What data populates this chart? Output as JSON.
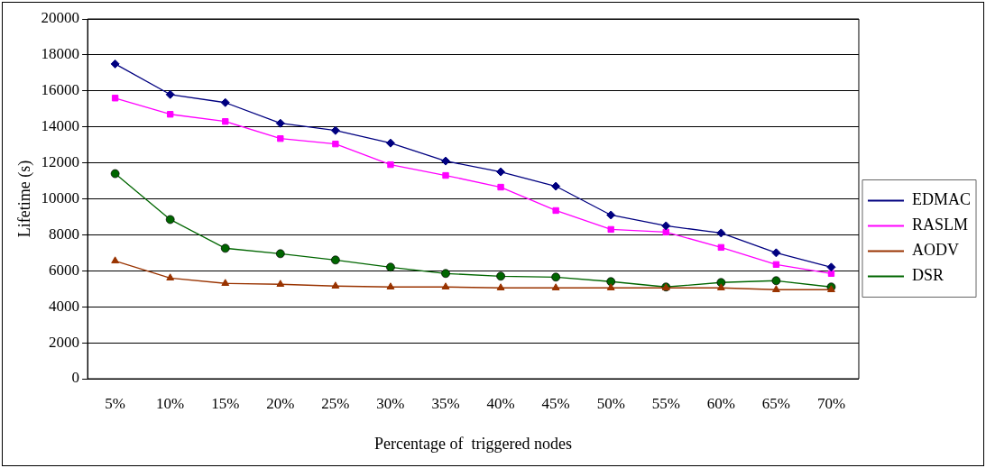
{
  "chart_data": {
    "type": "line",
    "xlabel": "Percentage of  triggered nodes",
    "ylabel": "Lifetime (s)",
    "categories": [
      "5%",
      "10%",
      "15%",
      "20%",
      "25%",
      "30%",
      "35%",
      "40%",
      "45%",
      "50%",
      "55%",
      "60%",
      "65%",
      "70%"
    ],
    "series": [
      {
        "name": "EDMAC",
        "color": "#000080",
        "marker": "diamond",
        "values": [
          17500,
          15800,
          15350,
          14200,
          13800,
          13100,
          12100,
          11500,
          10700,
          9100,
          8500,
          8100,
          7000,
          6200
        ]
      },
      {
        "name": "RASLM",
        "color": "#ff00ff",
        "marker": "square",
        "values": [
          15600,
          14700,
          14300,
          13350,
          13050,
          11900,
          11300,
          10650,
          9350,
          8300,
          8150,
          7300,
          6350,
          5850
        ]
      },
      {
        "name": "AODV",
        "color": "#993300",
        "marker": "triangle",
        "values": [
          6550,
          5600,
          5300,
          5250,
          5150,
          5100,
          5100,
          5050,
          5050,
          5050,
          5050,
          5050,
          4950,
          4950
        ]
      },
      {
        "name": "DSR",
        "color": "#006600",
        "marker": "circle",
        "values": [
          11400,
          8850,
          7250,
          6950,
          6600,
          6200,
          5850,
          5700,
          5650,
          5400,
          5100,
          5350,
          5450,
          5100
        ]
      }
    ],
    "ylim": [
      0,
      20000
    ],
    "yticks": [
      0,
      2000,
      4000,
      6000,
      8000,
      10000,
      12000,
      14000,
      16000,
      18000,
      20000
    ],
    "grid": "y",
    "legend": "right",
    "line_style": "solid"
  }
}
